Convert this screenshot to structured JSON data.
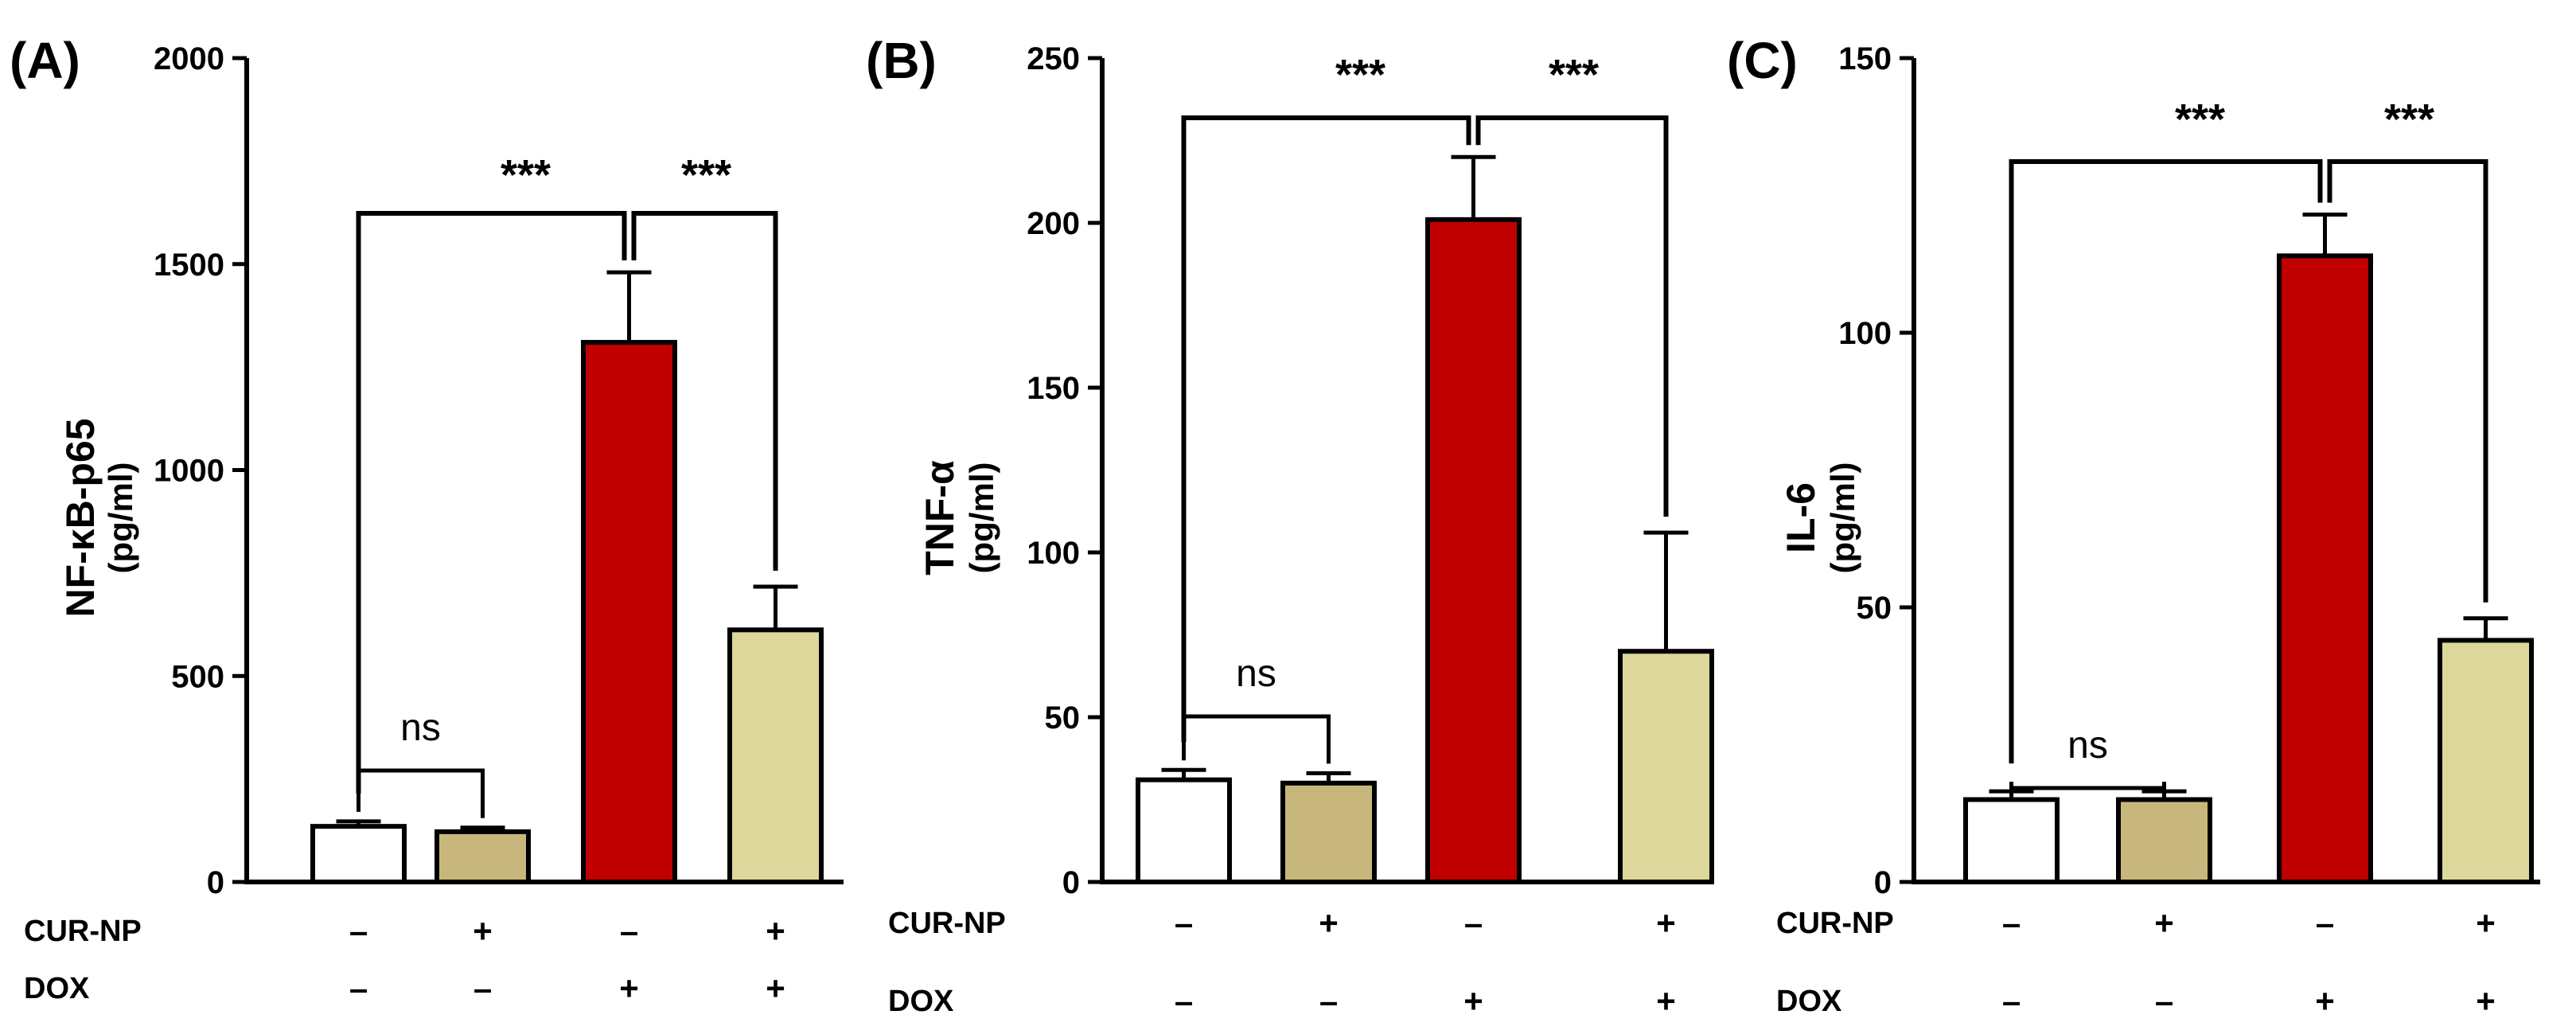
{
  "chart_data": [
    {
      "panel": "(A)",
      "type": "bar",
      "ylabel": "NF-κB-p65",
      "yunit": "(pg/ml)",
      "ylim": [
        0,
        2000
      ],
      "yticks": [
        0,
        500,
        1000,
        1500,
        2000
      ],
      "values": [
        135,
        122,
        1310,
        612
      ],
      "errors": [
        12,
        10,
        170,
        105
      ],
      "colors": [
        "#ffffff",
        "#c8b77d",
        "#c00000",
        "#ddd79c"
      ],
      "rows": [
        {
          "name": "CUR-NP",
          "signs": [
            "–",
            "+",
            "–",
            "+"
          ]
        },
        {
          "name": "DOX",
          "signs": [
            "–",
            "–",
            "+",
            "+"
          ]
        }
      ],
      "comparisons": [
        {
          "from": 0,
          "to": 2,
          "label": "***"
        },
        {
          "from": 2,
          "to": 3,
          "label": "***"
        },
        {
          "from": 0,
          "to": 1,
          "label": "ns"
        }
      ]
    },
    {
      "panel": "(B)",
      "type": "bar",
      "ylabel": "TNF-α",
      "yunit": "(pg/ml)",
      "ylim": [
        0,
        250
      ],
      "yticks": [
        0,
        50,
        100,
        150,
        200,
        250
      ],
      "values": [
        31,
        30,
        201,
        70
      ],
      "errors": [
        3,
        3,
        19,
        36
      ],
      "colors": [
        "#ffffff",
        "#c8b77d",
        "#c00000",
        "#ddd79c"
      ],
      "rows": [
        {
          "name": "CUR-NP",
          "signs": [
            "–",
            "+",
            "–",
            "+"
          ]
        },
        {
          "name": "DOX",
          "signs": [
            "–",
            "–",
            "+",
            "+"
          ]
        }
      ],
      "comparisons": [
        {
          "from": 0,
          "to": 2,
          "label": "***"
        },
        {
          "from": 2,
          "to": 3,
          "label": "***"
        },
        {
          "from": 0,
          "to": 1,
          "label": "ns"
        }
      ]
    },
    {
      "panel": "(C)",
      "type": "bar",
      "ylabel": "IL-6",
      "yunit": "(pg/ml)",
      "ylim": [
        0,
        150
      ],
      "yticks": [
        0,
        50,
        100,
        150
      ],
      "values": [
        15,
        15,
        114,
        44
      ],
      "errors": [
        1.5,
        1.5,
        7.5,
        4
      ],
      "colors": [
        "#ffffff",
        "#c8b77d",
        "#c00000",
        "#ddd79c"
      ],
      "rows": [
        {
          "name": "CUR-NP",
          "signs": [
            "–",
            "+",
            "–",
            "+"
          ]
        },
        {
          "name": "DOX",
          "signs": [
            "–",
            "–",
            "+",
            "+"
          ]
        }
      ],
      "comparisons": [
        {
          "from": 0,
          "to": 2,
          "label": "***"
        },
        {
          "from": 2,
          "to": 3,
          "label": "***"
        },
        {
          "from": 0,
          "to": 1,
          "label": "ns"
        }
      ]
    }
  ]
}
